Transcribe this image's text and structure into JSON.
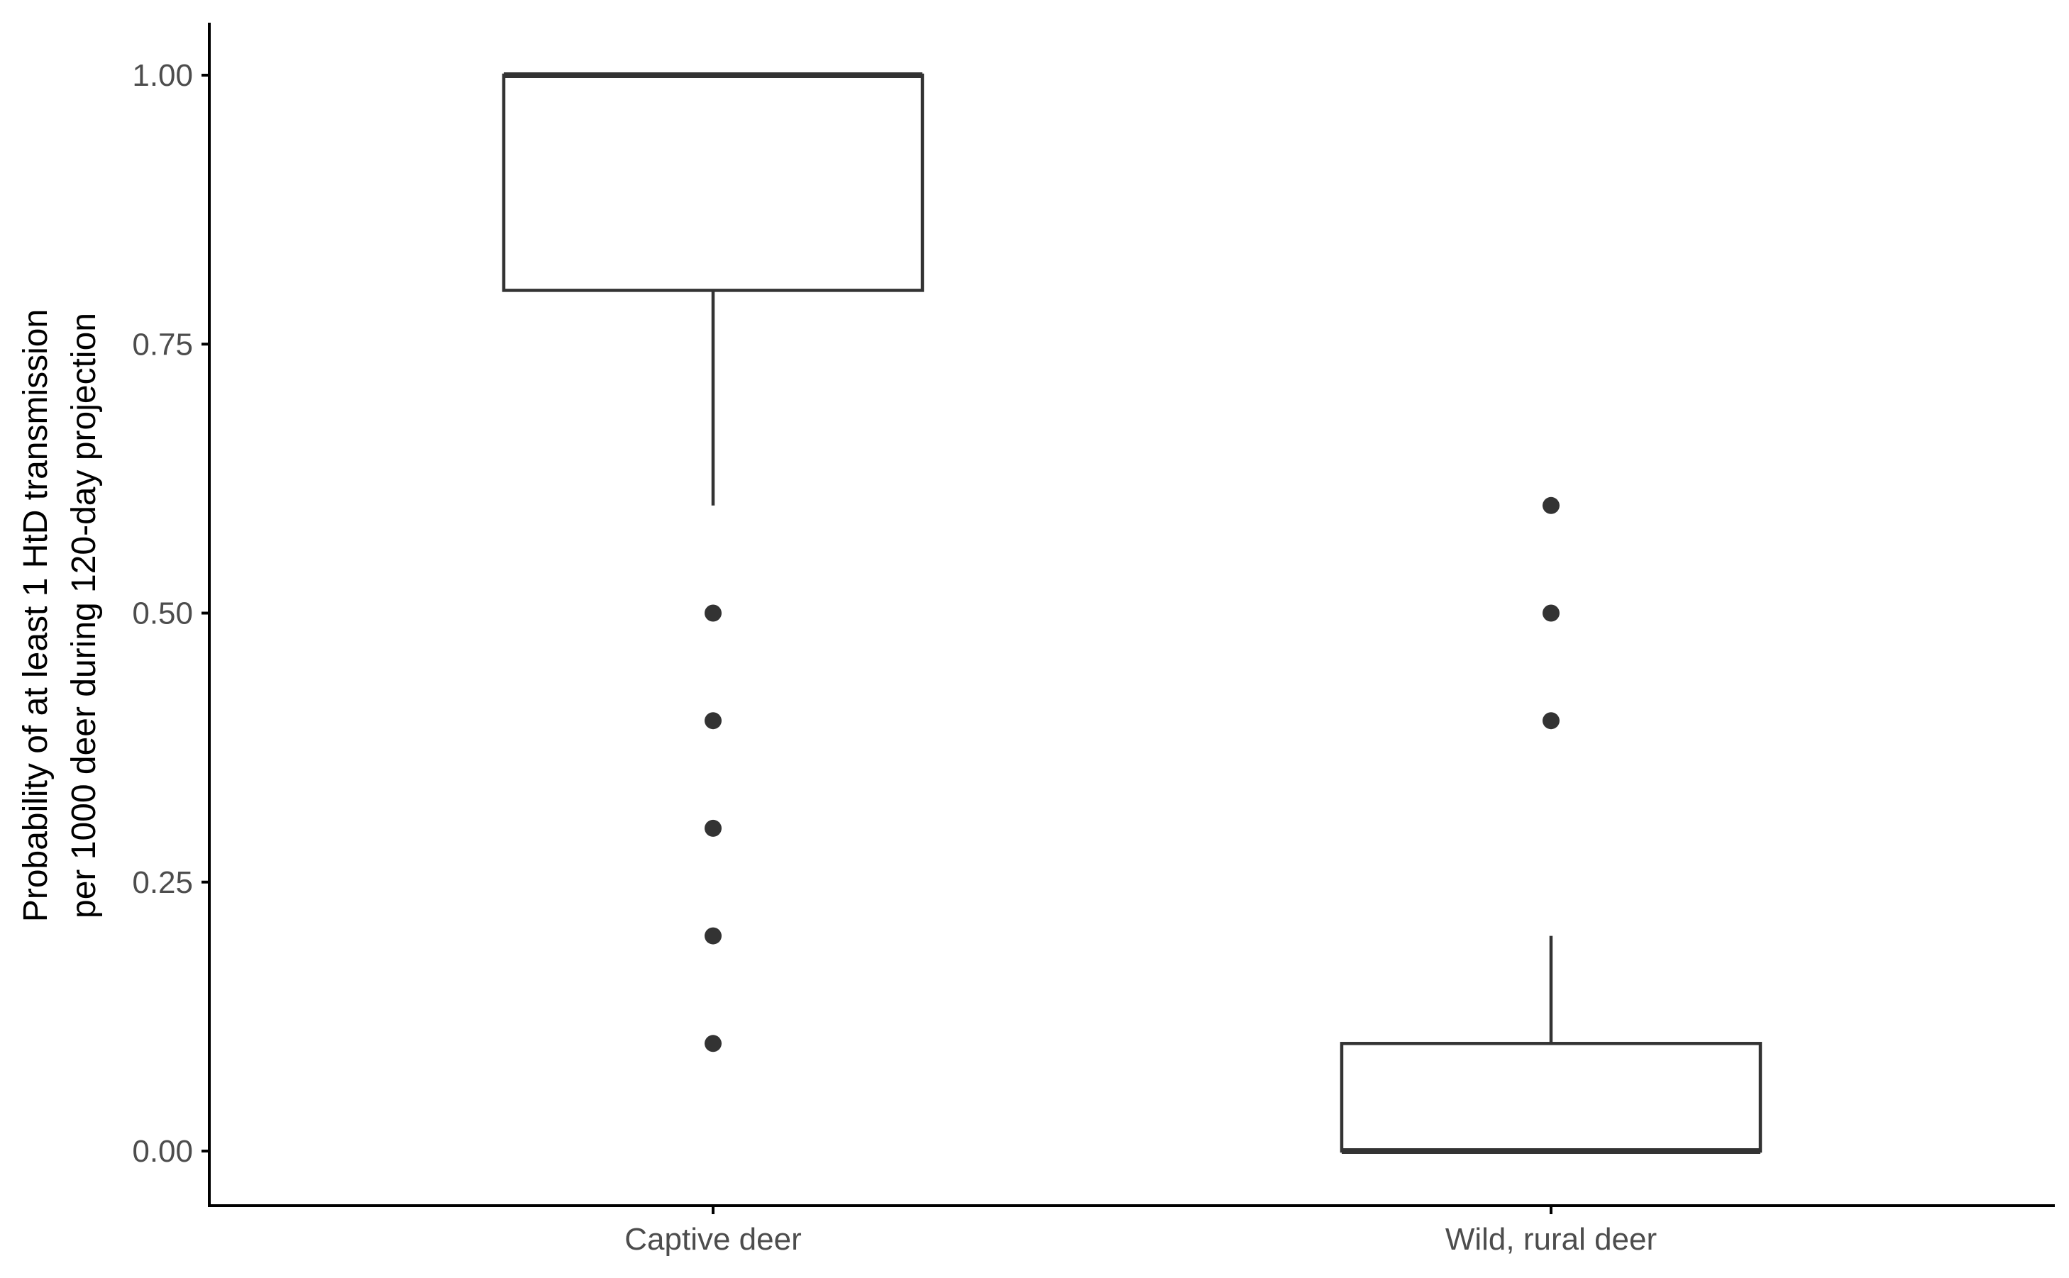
{
  "chart_data": {
    "type": "boxplot",
    "title": "",
    "xlabel": "",
    "ylabel": [
      "Probability of at least 1 HtD transmission",
      "per 1000 deer during 120-day projection"
    ],
    "ylim": [
      -0.05,
      1.05
    ],
    "yticks": [
      0.0,
      0.25,
      0.5,
      0.75,
      1.0
    ],
    "ytick_labels": [
      "0.00",
      "0.25",
      "0.50",
      "0.75",
      "1.00"
    ],
    "categories": [
      "Captive deer",
      "Wild, rural deer"
    ],
    "boxes": [
      {
        "category": "Captive deer",
        "whisker_low": 0.6,
        "q1": 0.8,
        "median": 1.0,
        "q3": 1.0,
        "whisker_high": 1.0,
        "outliers": [
          0.5,
          0.4,
          0.3,
          0.2,
          0.1
        ]
      },
      {
        "category": "Wild, rural deer",
        "whisker_low": 0.0,
        "q1": 0.0,
        "median": 0.0,
        "q3": 0.1,
        "whisker_high": 0.2,
        "outliers": [
          0.6,
          0.5,
          0.4
        ]
      }
    ],
    "grid": false,
    "legend": "none",
    "colors": {
      "box_outline": "#333333",
      "box_fill": "#ffffff",
      "axis": "#000000",
      "tick_text": "#4d4d4d"
    }
  }
}
